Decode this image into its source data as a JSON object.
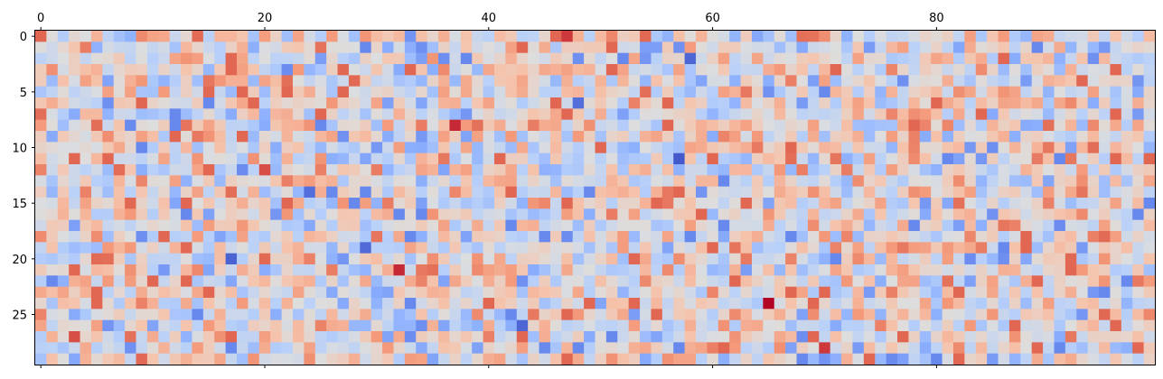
{
  "chart_data": {
    "type": "heatmap",
    "title": "",
    "xlabel": "",
    "ylabel": "",
    "rows": 30,
    "cols": 100,
    "colormap": "coolwarm",
    "xlim": [
      -0.5,
      99.5
    ],
    "ylim": [
      29.5,
      -0.5
    ],
    "x_axis_position": "top",
    "x_ticks": [
      0,
      20,
      40,
      60,
      80
    ],
    "x_tick_labels": [
      "0",
      "20",
      "40",
      "60",
      "80"
    ],
    "y_ticks": [
      0,
      5,
      10,
      15,
      20,
      25
    ],
    "y_tick_labels": [
      "0",
      "5",
      "10",
      "15",
      "20",
      "25"
    ],
    "grid": false,
    "legend": "none",
    "seed": 7,
    "notable_cells": [
      {
        "row": 0,
        "col": 47,
        "value": 0.93
      },
      {
        "row": 8,
        "col": 37,
        "value": 0.95
      },
      {
        "row": 12,
        "col": 20,
        "value": 0.9
      },
      {
        "row": 21,
        "col": 32,
        "value": 0.95
      },
      {
        "row": 24,
        "col": 65,
        "value": 1.0
      },
      {
        "row": 27,
        "col": 3,
        "value": 0.9
      },
      {
        "row": 28,
        "col": 70,
        "value": 0.93
      },
      {
        "row": 11,
        "col": 57,
        "value": 0.03
      },
      {
        "row": 2,
        "col": 58,
        "value": 0.06
      },
      {
        "row": 20,
        "col": 17,
        "value": 0.05
      },
      {
        "row": 19,
        "col": 29,
        "value": 0.07
      },
      {
        "row": 26,
        "col": 43,
        "value": 0.06
      },
      {
        "row": 6,
        "col": 48,
        "value": 0.08
      },
      {
        "row": 14,
        "col": 24,
        "value": 0.08
      }
    ]
  }
}
